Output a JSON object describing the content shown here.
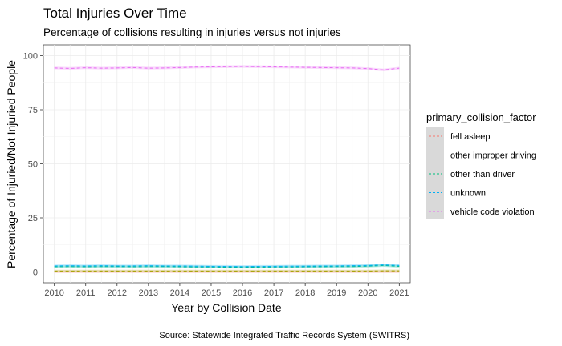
{
  "chart_data": {
    "type": "line",
    "title": "Total Injuries Over Time",
    "subtitle": "Percentage of collisions resulting in injuries versus not injuries",
    "xlabel": "Year by Collision Date",
    "ylabel": "Percentage of Injuried/Not Injuried People",
    "caption": "Source: Statewide Integrated Traffic Records System (SWITRS)",
    "legend_title": "primary_collision_factor",
    "legend_position": "right",
    "grid": true,
    "xlim": [
      2009.65,
      2021.35
    ],
    "ylim": [
      -5,
      105
    ],
    "x_ticks": [
      "2010",
      "2011",
      "2012",
      "2013",
      "2014",
      "2015",
      "2016",
      "2017",
      "2018",
      "2019",
      "2020",
      "2021"
    ],
    "y_ticks": [
      "0",
      "25",
      "50",
      "75",
      "100"
    ],
    "x": [
      2010,
      2010.5,
      2011,
      2011.5,
      2012,
      2012.5,
      2013,
      2013.5,
      2014,
      2014.5,
      2015,
      2015.5,
      2016,
      2016.5,
      2017,
      2017.5,
      2018,
      2018.5,
      2019,
      2019.5,
      2020,
      2020.5,
      2021
    ],
    "series": [
      {
        "name": "fell asleep",
        "color": "#F8766D",
        "values": [
          0.1,
          0.1,
          0.1,
          0.1,
          0.1,
          0.1,
          0.1,
          0.1,
          0.1,
          0.1,
          0.1,
          0.1,
          0.1,
          0.1,
          0.1,
          0.1,
          0.1,
          0.1,
          0.1,
          0.1,
          0.1,
          0.1,
          0.1
        ]
      },
      {
        "name": "other improper driving",
        "color": "#A3A500",
        "values": [
          0.4,
          0.4,
          0.4,
          0.4,
          0.4,
          0.4,
          0.4,
          0.4,
          0.4,
          0.4,
          0.4,
          0.4,
          0.4,
          0.4,
          0.4,
          0.4,
          0.4,
          0.4,
          0.4,
          0.4,
          0.4,
          0.5,
          0.5
        ]
      },
      {
        "name": "other than driver",
        "color": "#00BF7D",
        "values": [
          2.4,
          2.5,
          2.4,
          2.5,
          2.5,
          2.4,
          2.5,
          2.5,
          2.4,
          2.3,
          2.3,
          2.2,
          2.2,
          2.2,
          2.3,
          2.3,
          2.4,
          2.4,
          2.5,
          2.5,
          2.7,
          3.0,
          2.6
        ]
      },
      {
        "name": "unknown",
        "color": "#00B0F6",
        "values": [
          2.8,
          2.9,
          2.8,
          2.9,
          2.8,
          2.8,
          2.9,
          2.8,
          2.8,
          2.7,
          2.6,
          2.6,
          2.5,
          2.6,
          2.6,
          2.7,
          2.7,
          2.8,
          2.8,
          2.9,
          3.0,
          3.3,
          3.0
        ]
      },
      {
        "name": "vehicle code violation",
        "color": "#E76BF3",
        "values": [
          94.3,
          94.1,
          94.4,
          94.2,
          94.3,
          94.5,
          94.2,
          94.3,
          94.5,
          94.7,
          94.8,
          94.9,
          95.0,
          94.9,
          94.8,
          94.7,
          94.6,
          94.5,
          94.4,
          94.3,
          94.0,
          93.4,
          94.2
        ]
      }
    ]
  }
}
